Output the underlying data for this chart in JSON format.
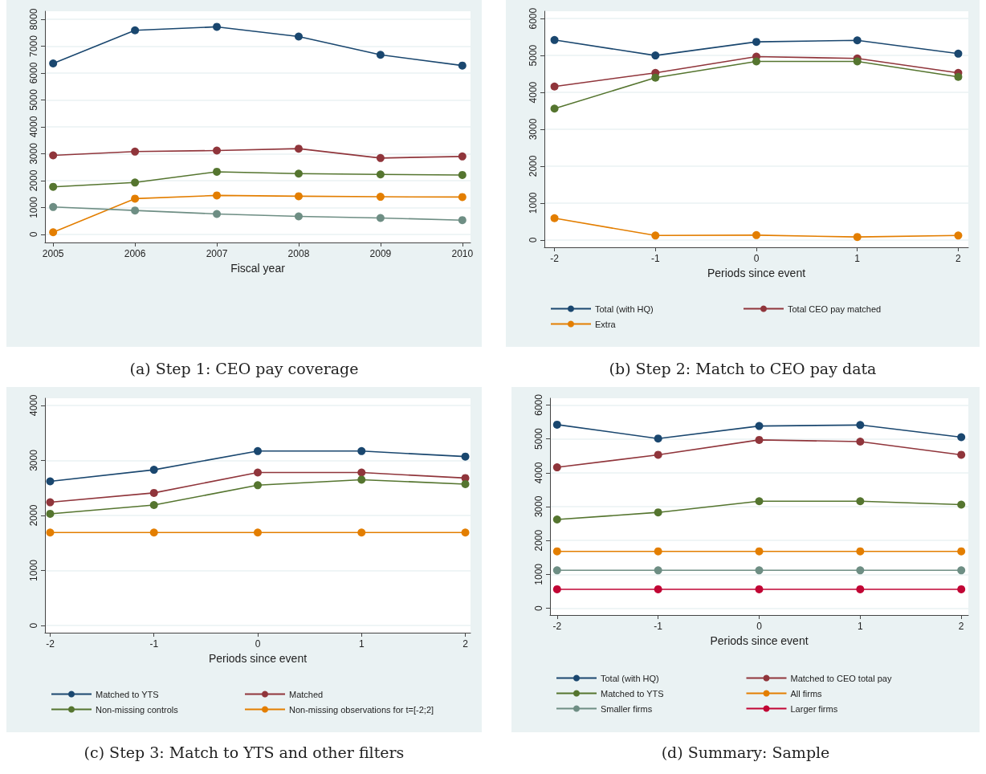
{
  "chart_data": [
    {
      "type": "line",
      "xlabel": "Fiscal year",
      "x": [
        2005,
        2006,
        2007,
        2008,
        2009,
        2010
      ],
      "xlim": [
        2004.9,
        2010.1
      ],
      "xticks": [
        2005,
        2006,
        2007,
        2008,
        2009,
        2010
      ],
      "ylim": [
        -300,
        8300
      ],
      "yticks": [
        0,
        1000,
        2000,
        3000,
        4000,
        5000,
        6000,
        7000,
        8000
      ],
      "grid": "y",
      "legend": false,
      "marker": "circle",
      "line_style": "solid",
      "annotations": [
        "(a) Step 1: CEO pay coverage"
      ],
      "series": [
        {
          "color": "#1a476f",
          "values": [
            6360,
            7590,
            7720,
            7360,
            6680,
            6280
          ]
        },
        {
          "color": "#90353b",
          "values": [
            2940,
            3080,
            3120,
            3190,
            2840,
            2900
          ]
        },
        {
          "color": "#55752f",
          "values": [
            1770,
            1930,
            2330,
            2260,
            2230,
            2210
          ]
        },
        {
          "color": "#e37e00",
          "values": [
            80,
            1330,
            1450,
            1420,
            1400,
            1390
          ]
        },
        {
          "color": "#6e8e84",
          "values": [
            1020,
            890,
            760,
            670,
            610,
            530
          ]
        }
      ]
    },
    {
      "type": "line",
      "xlabel": "Periods since event",
      "x": [
        -2,
        -1,
        0,
        1,
        2
      ],
      "xlim": [
        -2.1,
        2.1
      ],
      "xticks": [
        -2,
        -1,
        0,
        1,
        2
      ],
      "ylim": [
        -200,
        6200
      ],
      "yticks": [
        0,
        1000,
        2000,
        3000,
        4000,
        5000,
        6000
      ],
      "grid": "y",
      "legend": "bottom",
      "marker": "circle",
      "line_style": "solid",
      "annotations": [
        "(b) Step 2: Match to CEO pay data"
      ],
      "series": [
        {
          "name": "Total (with HQ)",
          "color": "#1a476f",
          "values": [
            5420,
            5000,
            5370,
            5410,
            5050
          ]
        },
        {
          "name": "Total CEO pay matched",
          "color": "#90353b",
          "values": [
            4160,
            4530,
            4970,
            4920,
            4530
          ]
        },
        {
          "color": "#55752f",
          "values": [
            3560,
            4400,
            4840,
            4840,
            4420
          ]
        },
        {
          "name": "Extra",
          "color": "#e37e00",
          "values": [
            590,
            120,
            130,
            80,
            120
          ]
        }
      ]
    },
    {
      "type": "line",
      "xlabel": "Periods since event",
      "x": [
        -2,
        -1,
        0,
        1,
        2
      ],
      "xlim": [
        -2.05,
        2.05
      ],
      "xticks": [
        -2,
        -1,
        0,
        1,
        2
      ],
      "ylim": [
        -130,
        4130
      ],
      "yticks": [
        0,
        1000,
        2000,
        3000,
        4000
      ],
      "grid": "y",
      "legend": "bottom",
      "marker": "circle",
      "line_style": "solid",
      "annotations": [
        "(c) Step 3: Match to YTS and other filters"
      ],
      "series": [
        {
          "name": "Matched to YTS",
          "color": "#1a476f",
          "values": [
            2620,
            2830,
            3170,
            3170,
            3070
          ]
        },
        {
          "name": "Matched",
          "color": "#90353b",
          "values": [
            2240,
            2410,
            2780,
            2780,
            2680
          ]
        },
        {
          "name": "Non-missing controls",
          "color": "#55752f",
          "values": [
            2030,
            2190,
            2550,
            2650,
            2570
          ]
        },
        {
          "name": "Non-missing observations for t=[-2;2]",
          "color": "#e37e00",
          "values": [
            1690,
            1690,
            1690,
            1690,
            1690
          ]
        }
      ]
    },
    {
      "type": "line",
      "xlabel": "Periods since event",
      "x": [
        -2,
        -1,
        0,
        1,
        2
      ],
      "xlim": [
        -2.07,
        2.07
      ],
      "xticks": [
        -2,
        -1,
        0,
        1,
        2
      ],
      "ylim": [
        -200,
        6200
      ],
      "yticks": [
        0,
        1000,
        2000,
        3000,
        4000,
        5000,
        6000
      ],
      "grid": "y",
      "legend": "bottom",
      "marker": "circle",
      "line_style": "solid",
      "annotations": [
        "(d) Summary: Sample"
      ],
      "series": [
        {
          "name": "Total (with HQ)",
          "color": "#1a476f",
          "values": [
            5420,
            5010,
            5380,
            5410,
            5050
          ]
        },
        {
          "name": "Matched to CEO total pay",
          "color": "#90353b",
          "values": [
            4160,
            4530,
            4970,
            4920,
            4530
          ]
        },
        {
          "name": "Matched to YTS",
          "color": "#55752f",
          "values": [
            2620,
            2830,
            3160,
            3160,
            3060
          ]
        },
        {
          "name": "All firms",
          "color": "#e37e00",
          "values": [
            1680,
            1680,
            1680,
            1680,
            1680
          ]
        },
        {
          "name": "Smaller firms",
          "color": "#6e8e84",
          "values": [
            1120,
            1120,
            1120,
            1120,
            1120
          ]
        },
        {
          "name": "Larger firms",
          "color": "#c10534",
          "values": [
            560,
            560,
            560,
            560,
            560
          ]
        }
      ]
    }
  ]
}
